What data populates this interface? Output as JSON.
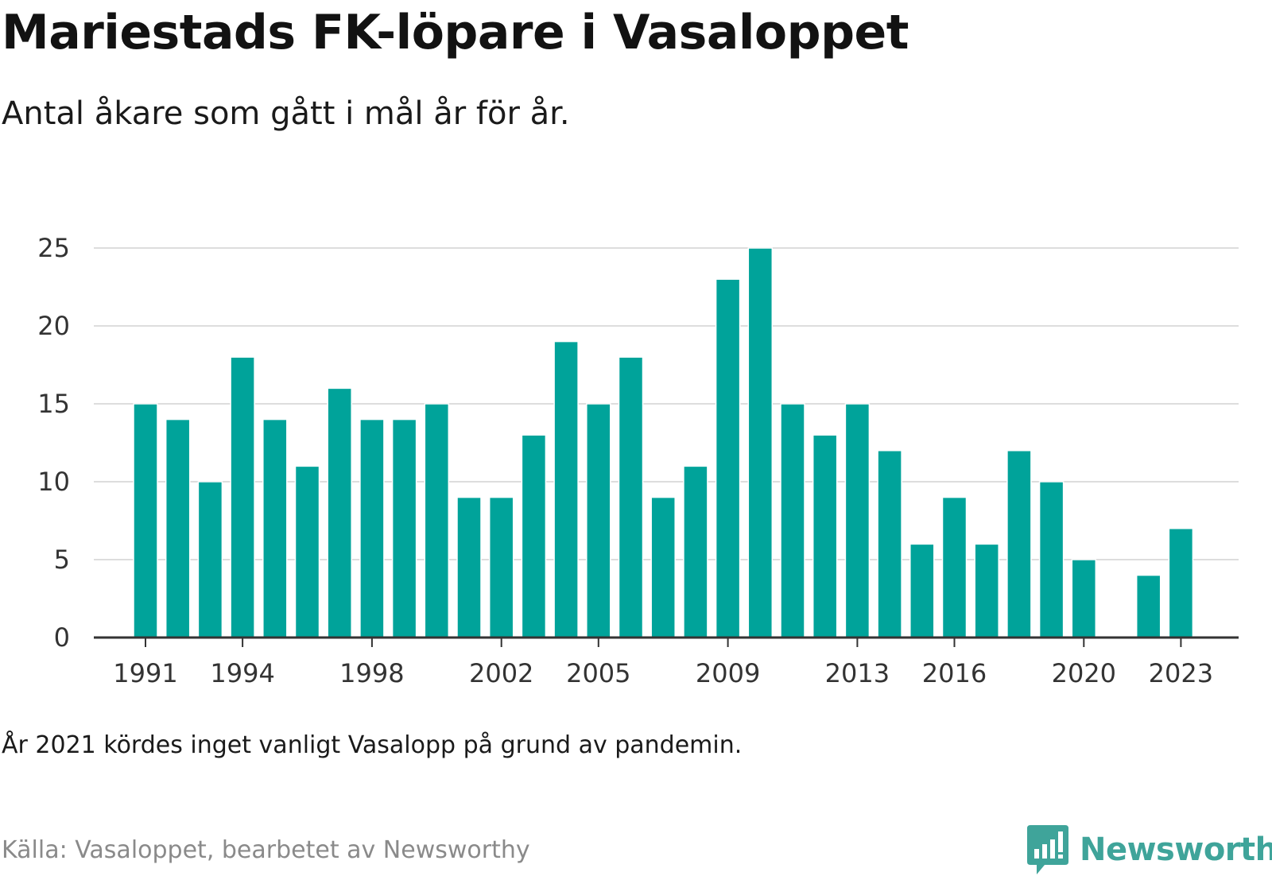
{
  "title": "Mariestads FK-löpare i Vasaloppet",
  "subtitle": "Antal åkare som gått i mål år för år.",
  "note": "År 2021 kördes inget vanligt Vasalopp på grund av pandemin.",
  "source": "Källa: Vasaloppet, bearbetet av Newsworthy",
  "brand": {
    "name": "Newsworthy",
    "icon": "newsworthy-logo-icon",
    "color": "#3fa49a"
  },
  "colors": {
    "bar": "#00a39a",
    "grid": "#dddddd",
    "axis": "#333333"
  },
  "chart_data": {
    "type": "bar",
    "x": [
      1991,
      1992,
      1993,
      1994,
      1995,
      1996,
      1997,
      1998,
      1999,
      2000,
      2001,
      2002,
      2003,
      2004,
      2005,
      2006,
      2007,
      2008,
      2009,
      2010,
      2011,
      2012,
      2013,
      2014,
      2015,
      2016,
      2017,
      2018,
      2019,
      2020,
      2021,
      2022,
      2023
    ],
    "values": [
      15,
      14,
      10,
      18,
      14,
      11,
      16,
      14,
      14,
      15,
      9,
      9,
      13,
      19,
      15,
      18,
      9,
      11,
      23,
      25,
      15,
      13,
      15,
      12,
      6,
      9,
      6,
      12,
      10,
      5,
      null,
      4,
      7
    ],
    "x_tick_labels": [
      1991,
      1994,
      1998,
      2002,
      2005,
      2009,
      2013,
      2016,
      2020,
      2023
    ],
    "y_ticks": [
      0,
      5,
      10,
      15,
      20,
      25
    ],
    "ylim": [
      0,
      25
    ],
    "grid": true,
    "legend": "none"
  }
}
